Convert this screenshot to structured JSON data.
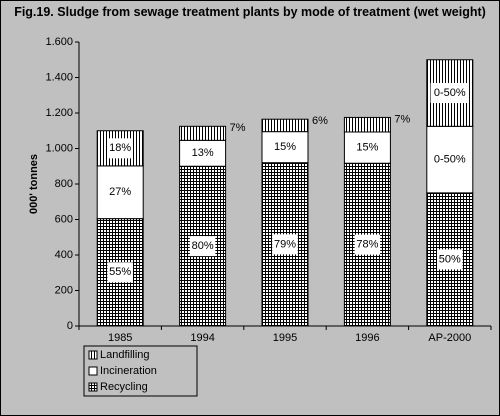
{
  "chart_data": {
    "type": "stacked_bar",
    "title": "Fig.19. Sludge from sewage treatment plants by mode of treatment (wet weight)",
    "y_label": "000' tonnes",
    "categories": [
      "1985",
      "1994",
      "1995",
      "1996",
      "AP-2000"
    ],
    "series": [
      {
        "name": "Recycling",
        "pattern": "grid",
        "values": [
          605,
          900,
          920,
          917,
          750
        ],
        "share_labels": [
          "55%",
          "80%",
          "79%",
          "78%",
          "50%"
        ]
      },
      {
        "name": "Incineration",
        "pattern": "none",
        "values": [
          297,
          146,
          175,
          176,
          375
        ],
        "share_labels": [
          "27%",
          "13%",
          "15%",
          "15%",
          "0-50%"
        ]
      },
      {
        "name": "Landfilling",
        "pattern": "vertical",
        "values": [
          198,
          79,
          70,
          82,
          375
        ],
        "share_labels": [
          "18%",
          "7%",
          "6%",
          "7%",
          "0-50%"
        ]
      }
    ],
    "ylim": [
      0,
      1600
    ],
    "yticks": [
      0,
      200,
      400,
      600,
      800,
      {
        "value": 1000,
        "label": "1.000"
      },
      {
        "value": 1200,
        "label": "1.200"
      },
      {
        "value": 1400,
        "label": "1.400"
      },
      {
        "value": 1600,
        "label": "1.600"
      }
    ],
    "grid": false,
    "legend": "bottom-left"
  }
}
